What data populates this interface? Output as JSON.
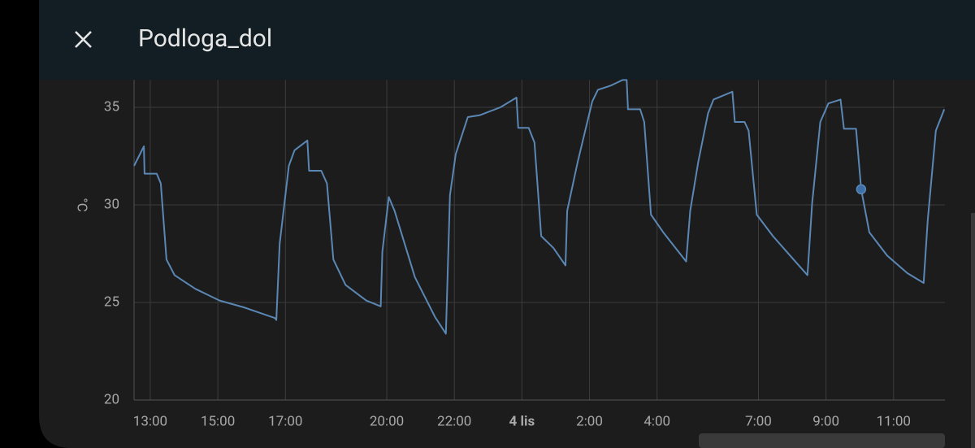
{
  "chart_data": {
    "type": "line",
    "title": "Podloga_dol",
    "y_label": "°C",
    "xlim": [
      12.52,
      36.52
    ],
    "ylim": [
      20,
      36.4
    ],
    "xticks": [
      {
        "value": 13,
        "label": "13:00"
      },
      {
        "value": 15,
        "label": "15:00"
      },
      {
        "value": 17,
        "label": "17:00"
      },
      {
        "value": 20,
        "label": "20:00"
      },
      {
        "value": 22,
        "label": "22:00"
      },
      {
        "value": 24,
        "label": "4 lis"
      },
      {
        "value": 26,
        "label": "2:00"
      },
      {
        "value": 28,
        "label": "4:00"
      },
      {
        "value": 31,
        "label": "7:00"
      },
      {
        "value": 33,
        "label": "9:00"
      },
      {
        "value": 35,
        "label": "11:00"
      }
    ],
    "yticks": [
      20,
      25,
      30,
      35
    ],
    "grid": true,
    "series": [
      {
        "color": "#5b87b5",
        "x": [
          12.52,
          12.81,
          12.83,
          13.19,
          13.31,
          13.48,
          13.72,
          14.33,
          15.05,
          15.77,
          16.69,
          16.73,
          16.83,
          17.1,
          17.27,
          17.65,
          17.7,
          18.06,
          18.23,
          18.42,
          18.78,
          19.39,
          19.82,
          19.87,
          20.06,
          20.23,
          20.83,
          21.43,
          21.75,
          21.87,
          22.04,
          22.4,
          22.76,
          23.36,
          23.84,
          23.89,
          24.2,
          24.37,
          24.57,
          24.93,
          25.29,
          25.34,
          25.65,
          26.08,
          26.25,
          26.61,
          26.98,
          27.1,
          27.14,
          27.5,
          27.62,
          27.82,
          28.18,
          28.86,
          28.98,
          29.22,
          29.51,
          29.67,
          30.23,
          30.3,
          30.59,
          30.71,
          30.95,
          31.43,
          32.04,
          32.45,
          32.59,
          32.83,
          33.07,
          33.43,
          33.53,
          33.89,
          34.04,
          34.28,
          34.81,
          35.41,
          35.89,
          36.01,
          36.25,
          36.5
        ],
        "values": [
          32.0,
          33.0,
          31.6,
          31.6,
          31.1,
          27.2,
          26.4,
          25.7,
          25.1,
          24.75,
          24.2,
          24.1,
          28.0,
          32.0,
          32.8,
          33.3,
          31.75,
          31.75,
          31.1,
          27.2,
          25.9,
          25.1,
          24.8,
          27.6,
          30.4,
          29.7,
          26.3,
          24.25,
          23.4,
          30.5,
          32.6,
          34.5,
          34.6,
          35.0,
          35.5,
          33.95,
          33.95,
          33.2,
          28.4,
          27.8,
          26.9,
          29.7,
          32.2,
          35.3,
          35.9,
          36.1,
          36.4,
          36.4,
          34.9,
          34.9,
          34.25,
          29.5,
          28.6,
          27.1,
          29.7,
          32.2,
          34.7,
          35.4,
          35.8,
          34.25,
          34.25,
          33.8,
          29.5,
          28.4,
          27.2,
          26.4,
          30.1,
          34.25,
          35.2,
          35.4,
          33.9,
          33.9,
          30.8,
          28.6,
          27.4,
          26.5,
          26.0,
          29.2,
          33.8,
          34.9
        ]
      }
    ],
    "highlight": {
      "x": 34.04,
      "y": 30.8
    }
  }
}
